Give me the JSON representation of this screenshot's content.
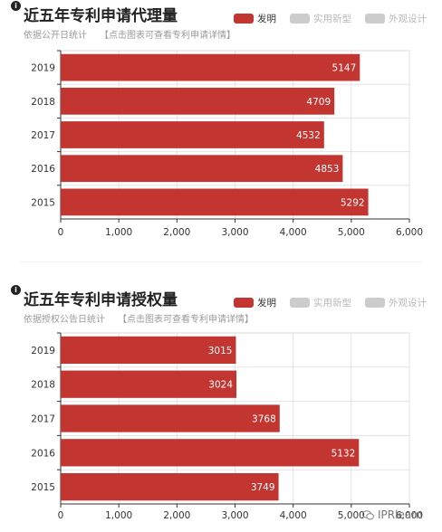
{
  "charts": [
    {
      "title": "近五年专利申请代理量",
      "subtitle": "依据公开日统计",
      "link": "【点击图表可查看专利申请详情】",
      "legend": [
        {
          "label": "发明",
          "color": "#c23531",
          "active": true
        },
        {
          "label": "实用新型",
          "color": "#cccccc",
          "active": false
        },
        {
          "label": "外观设计",
          "color": "#cccccc",
          "active": false
        }
      ]
    },
    {
      "title": "近五年专利申请授权量",
      "subtitle": "依据授权公告日统计",
      "link": "【点击图表可查看专利申请详情】",
      "legend": [
        {
          "label": "发明",
          "color": "#c23531",
          "active": true
        },
        {
          "label": "实用新型",
          "color": "#cccccc",
          "active": false
        },
        {
          "label": "外观设计",
          "color": "#cccccc",
          "active": false
        }
      ]
    }
  ],
  "chart_data": [
    {
      "type": "bar",
      "orientation": "horizontal",
      "title": "近五年专利申请代理量",
      "categories": [
        "2019",
        "2018",
        "2017",
        "2016",
        "2015"
      ],
      "series": [
        {
          "name": "发明",
          "values": [
            5147,
            4709,
            4532,
            4853,
            5292
          ],
          "color": "#c23531"
        }
      ],
      "xlim": [
        0,
        6000
      ],
      "xticks": [
        0,
        1000,
        2000,
        3000,
        4000,
        5000,
        6000
      ],
      "xtick_labels": [
        "0",
        "1,000",
        "2,000",
        "3,000",
        "4,000",
        "5,000",
        "6,000"
      ],
      "grid": true,
      "data_labels": true,
      "legend_position": "top-right"
    },
    {
      "type": "bar",
      "orientation": "horizontal",
      "title": "近五年专利申请授权量",
      "categories": [
        "2019",
        "2018",
        "2017",
        "2016",
        "2015"
      ],
      "series": [
        {
          "name": "发明",
          "values": [
            3015,
            3024,
            3768,
            5132,
            3749
          ],
          "color": "#c23531"
        }
      ],
      "xlim": [
        0,
        6000
      ],
      "xticks": [
        0,
        1000,
        2000,
        3000,
        4000,
        5000,
        6000
      ],
      "xtick_labels": [
        "0",
        "1,000",
        "2,000",
        "3,000",
        "4,000",
        "5,000",
        "6,000"
      ],
      "grid": true,
      "data_labels": true,
      "legend_position": "top-right"
    }
  ],
  "watermark": "IPRlearn"
}
